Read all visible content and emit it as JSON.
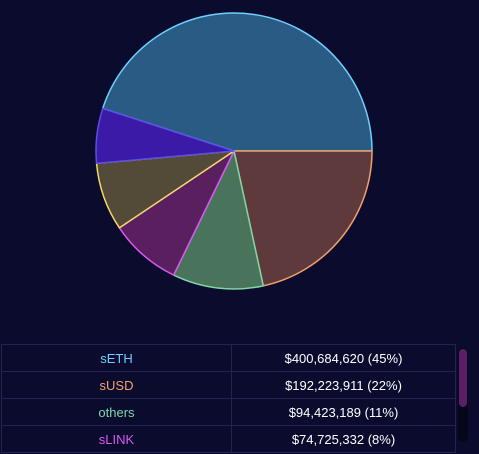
{
  "chart_data": {
    "type": "pie",
    "slices": [
      {
        "label": "sETH",
        "value": 400684620,
        "percent": 45,
        "color": "#6fd0ff",
        "fill": "#2a5b85",
        "display_value": "$400,684,620 (45%)"
      },
      {
        "label": "sUSD",
        "value": 192223911,
        "percent": 22,
        "color": "#f4a06a",
        "fill": "#5e3a3c",
        "display_value": "$192,223,911 (22%)"
      },
      {
        "label": "others",
        "value": 94423189,
        "percent": 11,
        "color": "#7ed6a6",
        "fill": "#4a735c",
        "display_value": "$94,423,189 (11%)"
      },
      {
        "label": "sLINK",
        "value": 74725332,
        "percent": 8,
        "color": "#d858f0",
        "fill": "#5a1f5e",
        "display_value": "$74,725,332 (8%)"
      },
      {
        "label": "",
        "value": 71000000,
        "percent": 8,
        "color": "#f4d86a",
        "fill": "#544a38"
      },
      {
        "label": "",
        "value": 57000000,
        "percent": 6,
        "color": "#5a4ee6",
        "fill": "#3b1aa8"
      }
    ]
  }
}
